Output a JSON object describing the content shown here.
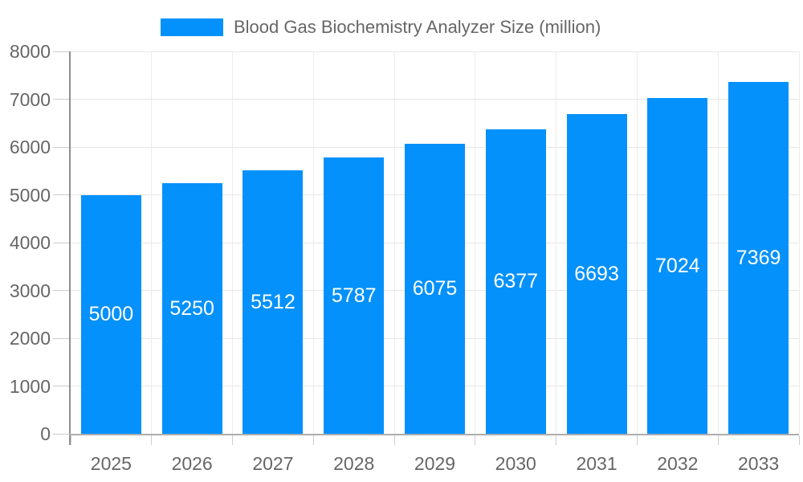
{
  "chart_data": {
    "type": "bar",
    "categories": [
      "2025",
      "2026",
      "2027",
      "2028",
      "2029",
      "2030",
      "2031",
      "2032",
      "2033"
    ],
    "series": [
      {
        "name": "Blood Gas Biochemistry Analyzer Size (million)",
        "values": [
          5000,
          5250,
          5512,
          5787,
          6075,
          6377,
          6693,
          7024,
          7369
        ]
      }
    ],
    "xlabel": "",
    "ylabel": "",
    "ylim": [
      0,
      8000
    ],
    "ytick_step": 1000,
    "yticklabels": [
      "0",
      "1000",
      "2000",
      "3000",
      "4000",
      "5000",
      "6000",
      "7000",
      "8000"
    ],
    "grid": true,
    "legend_position": "top",
    "value_labels_position": "inside-middle",
    "colors": {
      "bar": "#0591FB",
      "value_label_text": "#FFFFFF",
      "axis_text": "#666666",
      "grid_line": "#E6E6E6",
      "vertical_grid_line": "#ECECEC",
      "tick_mark": "#CCCCCC",
      "y_axis_line": "#8F8F8F",
      "x_axis_line": "#ADADAD",
      "background": "#FFFFFF"
    }
  }
}
